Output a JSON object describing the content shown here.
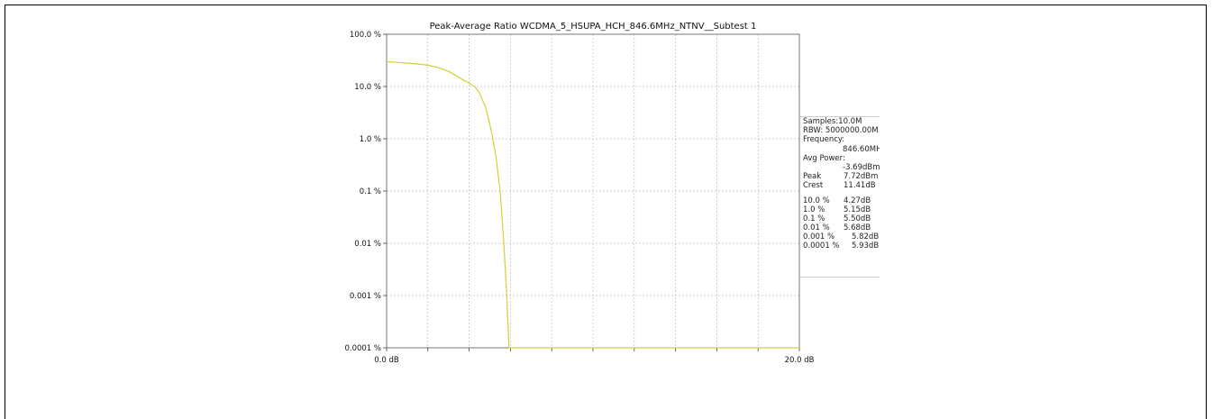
{
  "chart_data": {
    "type": "line",
    "title": "Peak-Average Ratio WCDMA_5_HSUPA_HCH_846.6MHz_NTNV__Subtest 1",
    "x_tick_labels": [
      "0.0 dB",
      "20.0 dB"
    ],
    "y_tick_labels": [
      "100.0 %",
      "10.0 %",
      "1.0 %",
      "0.1 %",
      "0.01 %",
      "0.001 %",
      "0.0001 %"
    ],
    "xlim": [
      0,
      20
    ],
    "ylim": [
      0.0001,
      100
    ],
    "yscale": "log",
    "grid": true,
    "series": [
      {
        "color": "#d4cf3a",
        "x": [
          0,
          0.5,
          1.0,
          1.5,
          2.0,
          2.5,
          3.0,
          3.5,
          4.0,
          4.27,
          4.5,
          4.8,
          5.0,
          5.15,
          5.3,
          5.5,
          5.68,
          5.82,
          5.93,
          5.97,
          6.0,
          8,
          10,
          12,
          14,
          16,
          18,
          20
        ],
        "y": [
          30,
          29,
          28,
          27,
          25.5,
          23,
          19.5,
          15,
          11.5,
          10,
          7.5,
          4,
          1.9,
          1.0,
          0.45,
          0.1,
          0.01,
          0.001,
          0.0001,
          0.0001,
          0.0001,
          0.0001,
          0.0001,
          0.0001,
          0.0001,
          0.0001,
          0.0001,
          0.0001
        ]
      }
    ]
  },
  "info_panel": {
    "samples": "Samples:10.0M",
    "rbw": "RBW: 5000000.00M",
    "frequency_label": "Frequency:",
    "frequency_value": "846.60MH",
    "avg_power_label": "Avg Power:",
    "avg_power_value": "-3.69dBm",
    "peak_label": "Peak",
    "peak_value": "7.72dBm",
    "crest_label": "Crest",
    "crest_value": "11.41dB",
    "ccdf": [
      {
        "p": "10.0 %",
        "v": "4.27dB"
      },
      {
        "p": "1.0 %",
        "v": "5.15dB"
      },
      {
        "p": "0.1 %",
        "v": "5.50dB"
      },
      {
        "p": "0.01 %",
        "v": "5.68dB"
      },
      {
        "p": "0.001 %",
        "v": "5.82dB"
      },
      {
        "p": "0.0001 %",
        "v": "5.93dB"
      }
    ]
  }
}
